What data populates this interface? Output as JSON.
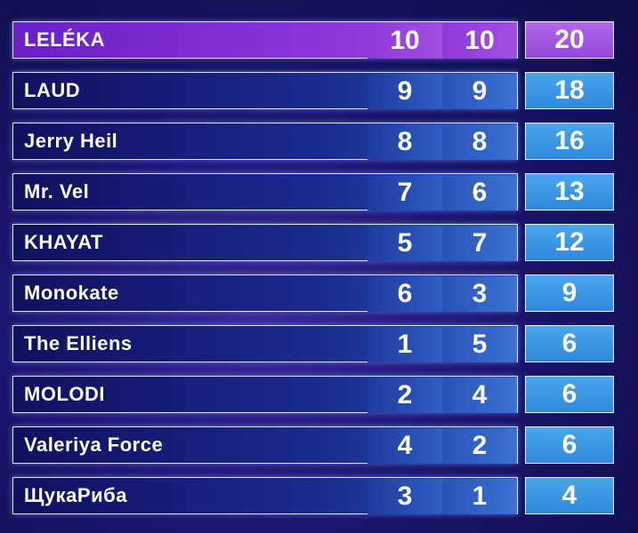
{
  "rows": [
    {
      "name": "LELÉKA",
      "scores": [
        10,
        10
      ],
      "total": 20
    },
    {
      "name": "LAUD",
      "scores": [
        9,
        9
      ],
      "total": 18
    },
    {
      "name": "Jerry Heil",
      "scores": [
        8,
        8
      ],
      "total": 16
    },
    {
      "name": "Mr. Vel",
      "scores": [
        7,
        6
      ],
      "total": 13
    },
    {
      "name": "KHAYAT",
      "scores": [
        5,
        7
      ],
      "total": 12
    },
    {
      "name": "Monokate",
      "scores": [
        6,
        3
      ],
      "total": 9
    },
    {
      "name": "The Elliens",
      "scores": [
        1,
        5
      ],
      "total": 6
    },
    {
      "name": "MOLODI",
      "scores": [
        2,
        4
      ],
      "total": 6
    },
    {
      "name": "Valeriya Force",
      "scores": [
        4,
        2
      ],
      "total": 6
    },
    {
      "name": "ЩукаРиба",
      "scores": [
        3,
        1
      ],
      "total": 4
    }
  ]
}
